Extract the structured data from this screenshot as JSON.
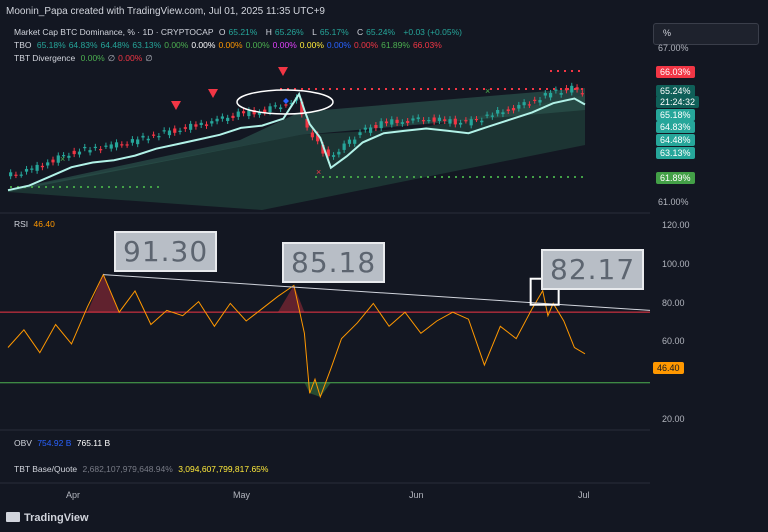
{
  "header": {
    "text": "Moonin_Papa created with TradingView.com, Jul 01, 2025 11:35 UTC+9"
  },
  "legend": {
    "symbol": "Market Cap BTC Dominance, % · 1D · CRYPTOCAP",
    "o_label": "O",
    "o_val": "65.21%",
    "h_label": "H",
    "h_val": "65.26%",
    "l_label": "L",
    "l_val": "65.17%",
    "c_label": "C",
    "c_val": "65.24%",
    "chg": "+0.03 (+0.05%)",
    "tbo_label": "TBO",
    "tbo_vals": [
      "65.18%",
      "64.83%",
      "64.48%",
      "63.13%",
      "0.00%",
      "0.00%",
      "0.00%",
      "0.00%",
      "0.00%",
      "0.00%",
      "0.00%",
      "0.00%",
      "61.89%",
      "66.03%"
    ],
    "tbo_colors": [
      "#26a69a",
      "#26a69a",
      "#26a69a",
      "#26a69a",
      "#4caf50",
      "#ffffff",
      "#ff9800",
      "#4caf50",
      "#e040fb",
      "#ffeb3b",
      "#2962ff",
      "#f23645",
      "#4caf50",
      "#f23645"
    ],
    "div_label": "TBT Divergence",
    "div_vals": [
      "0.00%",
      "∅",
      "0.00%",
      "∅"
    ],
    "div_colors": [
      "#4caf50",
      "#b2b5be",
      "#f23645",
      "#b2b5be"
    ],
    "rsi_label": "RSI",
    "rsi_val": "46.40",
    "obv_label": "OBV",
    "obv_v1": "754.92 B",
    "obv_v2": "765.11 B",
    "tbt_label": "TBT Base/Quote",
    "tbt_v1": "2,682,107,979,648.94%",
    "tbt_v2": "3,094,607,799,817.65%"
  },
  "price_axis": {
    "ticks": [
      "67.00%",
      "61.00%"
    ],
    "unit_button": "%",
    "tags": [
      {
        "text": "66.03%",
        "color": "#f23645"
      },
      {
        "text": "65.24%",
        "color": "#0f5f58"
      },
      {
        "text": "21:24:32",
        "color": "#0f5f58"
      },
      {
        "text": "65.18%",
        "color": "#26a69a"
      },
      {
        "text": "64.83%",
        "color": "#26a69a"
      },
      {
        "text": "64.48%",
        "color": "#26a69a"
      },
      {
        "text": "63.13%",
        "color": "#26a69a"
      },
      {
        "text": "61.89%",
        "color": "#43a047"
      }
    ]
  },
  "rsi_axis": {
    "ticks": [
      "120.00",
      "100.00",
      "80.00",
      "60.00",
      "20.00"
    ],
    "tag": "46.40"
  },
  "time_axis": {
    "labels": [
      "Apr",
      "May",
      "Jun",
      "Jul"
    ]
  },
  "callouts": [
    "91.30",
    "85.18",
    "82.17"
  ],
  "footer": {
    "logo_text": "TradingView"
  },
  "chart_data": [
    {
      "type": "line",
      "name": "Market Cap BTC Dominance, % · 1D · CRYPTOCAP (approx. close)",
      "x": [
        "Mar 14",
        "Mar 18",
        "Mar 22",
        "Mar 26",
        "Mar 30",
        "Apr 3",
        "Apr 7",
        "Apr 11",
        "Apr 15",
        "Apr 19",
        "Apr 23",
        "Apr 27",
        "May 1",
        "May 5",
        "May 8",
        "May 9",
        "May 10",
        "May 12",
        "May 14",
        "May 17",
        "May 20",
        "May 24",
        "May 28",
        "Jun 1",
        "Jun 5",
        "Jun 9",
        "Jun 13",
        "Jun 17",
        "Jun 21",
        "Jun 25",
        "Jun 29",
        "Jul 1"
      ],
      "values": [
        61.7,
        61.9,
        62.3,
        62.7,
        62.9,
        63.0,
        63.2,
        63.5,
        63.7,
        63.9,
        64.1,
        64.4,
        64.5,
        64.8,
        65.0,
        64.3,
        63.7,
        63.1,
        62.5,
        63.0,
        63.6,
        64.0,
        64.1,
        64.2,
        64.1,
        64.0,
        64.3,
        64.6,
        64.9,
        65.3,
        65.5,
        65.24
      ],
      "ylim": [
        60.8,
        67.3
      ]
    },
    {
      "type": "line",
      "name": "RSI",
      "x": [
        "Mar 14",
        "Mar 17",
        "Mar 20",
        "Mar 23",
        "Mar 26",
        "Mar 29",
        "Apr 1",
        "Apr 4",
        "Apr 7",
        "Apr 10",
        "Apr 13",
        "Apr 16",
        "Apr 19",
        "Apr 22",
        "Apr 25",
        "Apr 28",
        "May 1",
        "May 4",
        "May 7",
        "May 9",
        "May 10",
        "May 11",
        "May 12",
        "May 14",
        "May 16",
        "May 19",
        "May 22",
        "May 25",
        "May 28",
        "May 31",
        "Jun 3",
        "Jun 6",
        "Jun 9",
        "Jun 12",
        "Jun 15",
        "Jun 18",
        "Jun 21",
        "Jun 23",
        "Jun 24",
        "Jun 25",
        "Jun 27",
        "Jun 29",
        "Jul 1"
      ],
      "values": [
        50,
        60,
        47,
        63,
        52,
        73,
        91.3,
        70,
        82,
        63,
        71,
        68,
        76,
        62,
        75,
        65,
        72,
        79,
        85.18,
        58,
        24,
        32,
        22,
        38,
        55,
        64,
        75,
        62,
        70,
        58,
        65,
        70,
        66,
        40,
        62,
        55,
        72,
        82.17,
        68,
        75,
        65,
        50,
        46.4
      ],
      "ylim": [
        10,
        120
      ],
      "levels": [
        70,
        30
      ]
    }
  ]
}
